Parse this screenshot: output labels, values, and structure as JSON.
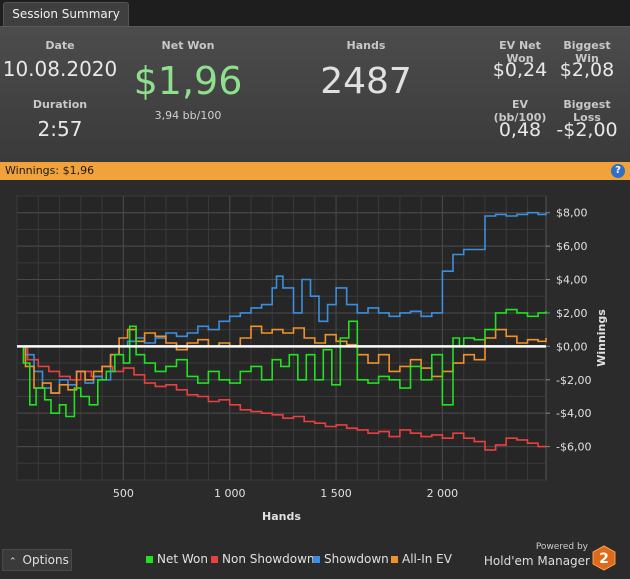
{
  "tab": {
    "label": "Session Summary"
  },
  "summary": {
    "date_label": "Date",
    "date": "10.08.2020",
    "duration_label": "Duration",
    "duration": "2:57",
    "net_won_label": "Net Won",
    "net_won": "$1,96",
    "bb_per_100": "3,94 bb/100",
    "hands_label": "Hands",
    "hands": "2487",
    "ev_net_won_label": "EV Net Won",
    "ev_net_won": "$0,24",
    "biggest_win_label": "Biggest Win",
    "biggest_win": "$2,08",
    "ev_bb_label": "EV (bb/100)",
    "ev_bb": "0,48",
    "biggest_loss_label": "Biggest Loss",
    "biggest_loss": "-$2,00"
  },
  "winnings_bar": {
    "text": "Winnings: $1,96",
    "help_icon": "?"
  },
  "colors": {
    "net_won": "#22e022",
    "non_showdown": "#e84040",
    "showdown": "#3a8fe0",
    "allin_ev": "#f0922a",
    "accent": "#f2a23a",
    "net_won_big": "#8ee08e"
  },
  "chart_data": {
    "type": "line",
    "xlabel": "Hands",
    "ylabel": "Winnings",
    "xlim": [
      0,
      2487
    ],
    "ylim": [
      -8,
      9
    ],
    "x_ticks": [
      500,
      1000,
      1500,
      2000
    ],
    "x_tick_labels": [
      "500",
      "1 000",
      "1 500",
      "2 000"
    ],
    "y_ticks": [
      8,
      6,
      4,
      2,
      0,
      -2,
      -4,
      -6
    ],
    "y_tick_labels": [
      "$8,00",
      "$6,00",
      "$4,00",
      "$2,00",
      "$0,00",
      "-$2,00",
      "-$4,00",
      "-$6,00"
    ],
    "grid": true,
    "legend_position": "bottom",
    "series": [
      {
        "name": "Net Won",
        "color_key": "net_won",
        "x": [
          0,
          30,
          60,
          90,
          130,
          160,
          200,
          230,
          270,
          300,
          340,
          380,
          420,
          460,
          500,
          530,
          560,
          600,
          650,
          700,
          750,
          800,
          850,
          900,
          950,
          1000,
          1050,
          1100,
          1150,
          1200,
          1240,
          1280,
          1320,
          1360,
          1400,
          1440,
          1480,
          1520,
          1560,
          1600,
          1650,
          1700,
          1750,
          1800,
          1850,
          1900,
          1950,
          2000,
          2050,
          2080,
          2100,
          2150,
          2200,
          2250,
          2300,
          2350,
          2400,
          2450,
          2487
        ],
        "y": [
          0,
          -1,
          -3.5,
          -2.5,
          -3.2,
          -4,
          -3.5,
          -4.2,
          -2.5,
          -3,
          -3.5,
          -2,
          -1.5,
          -0.5,
          -1,
          1.2,
          -0.5,
          -1,
          -1.5,
          -1.2,
          -0.8,
          -1.8,
          -2.2,
          -1.5,
          -2,
          -2.2,
          -1.5,
          -1.2,
          -2,
          -0.8,
          -1.2,
          -0.5,
          -2,
          -0.5,
          -2,
          -0.2,
          -2.3,
          0.5,
          1.5,
          -2,
          -2.2,
          -1.8,
          -2,
          -2.5,
          -1.2,
          -2,
          -0.5,
          -3.5,
          0.5,
          0,
          0.5,
          0.4,
          1,
          2,
          2.2,
          2,
          1.8,
          2,
          2.1
        ]
      },
      {
        "name": "Non Showdown",
        "color_key": "non_showdown",
        "x": [
          0,
          50,
          100,
          150,
          200,
          250,
          300,
          350,
          400,
          450,
          500,
          550,
          600,
          650,
          700,
          750,
          800,
          850,
          900,
          950,
          1000,
          1050,
          1100,
          1150,
          1200,
          1250,
          1300,
          1350,
          1400,
          1450,
          1500,
          1550,
          1600,
          1650,
          1700,
          1750,
          1800,
          1850,
          1900,
          1950,
          2000,
          2050,
          2100,
          2150,
          2200,
          2250,
          2300,
          2350,
          2400,
          2450,
          2487
        ],
        "y": [
          0,
          -0.8,
          -1.2,
          -1.5,
          -1.8,
          -2,
          -1.5,
          -1.8,
          -1.2,
          -1.5,
          -1.3,
          -1.7,
          -2.2,
          -2.4,
          -2.3,
          -2.6,
          -2.9,
          -3,
          -3.3,
          -3.2,
          -3.5,
          -3.8,
          -3.9,
          -4,
          -4.1,
          -4.3,
          -4.2,
          -4.5,
          -4.6,
          -4.8,
          -4.7,
          -4.9,
          -5,
          -5.2,
          -5.1,
          -5.4,
          -5,
          -5.2,
          -5.4,
          -5.3,
          -5.5,
          -5.2,
          -5.5,
          -5.7,
          -6.2,
          -5.9,
          -5.5,
          -5.6,
          -5.8,
          -6,
          -6
        ]
      },
      {
        "name": "Showdown",
        "color_key": "showdown",
        "x": [
          0,
          40,
          80,
          120,
          160,
          200,
          240,
          280,
          320,
          360,
          400,
          440,
          480,
          520,
          560,
          600,
          650,
          700,
          750,
          800,
          850,
          900,
          950,
          1000,
          1050,
          1100,
          1150,
          1200,
          1220,
          1250,
          1300,
          1340,
          1380,
          1420,
          1460,
          1500,
          1550,
          1600,
          1650,
          1700,
          1750,
          1800,
          1850,
          1900,
          1950,
          2000,
          2050,
          2100,
          2150,
          2200,
          2250,
          2300,
          2350,
          2400,
          2450,
          2487
        ],
        "y": [
          0,
          -0.5,
          -1.5,
          -2.5,
          -2.8,
          -2,
          -2.3,
          -1.5,
          -2.2,
          -1.8,
          -2,
          -0.5,
          0,
          0.3,
          0.5,
          0.2,
          0.5,
          0.8,
          0.6,
          0.8,
          1.2,
          1,
          1.5,
          1.8,
          2,
          2.3,
          2.5,
          3.5,
          4.2,
          3.5,
          2,
          4,
          3,
          1.5,
          2.5,
          3.5,
          2.5,
          2,
          2.3,
          2,
          1.8,
          2,
          2.1,
          1.8,
          2,
          4.5,
          5.5,
          5.8,
          5.8,
          7.8,
          7.9,
          7.8,
          7.9,
          8,
          7.9,
          8
        ]
      },
      {
        "name": "All-In EV",
        "color_key": "allin_ev",
        "x": [
          0,
          40,
          80,
          120,
          160,
          200,
          240,
          280,
          320,
          360,
          400,
          440,
          480,
          520,
          560,
          600,
          650,
          700,
          750,
          800,
          850,
          900,
          950,
          1000,
          1050,
          1100,
          1150,
          1200,
          1250,
          1300,
          1350,
          1400,
          1450,
          1500,
          1550,
          1600,
          1650,
          1700,
          1750,
          1800,
          1850,
          1900,
          1950,
          2000,
          2050,
          2100,
          2150,
          2200,
          2250,
          2300,
          2350,
          2400,
          2450,
          2487
        ],
        "y": [
          0,
          -1.2,
          -2.5,
          -2.2,
          -2.8,
          -2.3,
          -2.6,
          -1.5,
          -2,
          -1.5,
          -1.2,
          -0.5,
          0.5,
          1,
          0.3,
          0.8,
          0.6,
          0.2,
          -0.2,
          0.2,
          0.4,
          0,
          0.2,
          0,
          0.5,
          1.2,
          0.8,
          1,
          0.8,
          1.1,
          0.5,
          0.2,
          0.7,
          0.3,
          0.1,
          -0.5,
          -1,
          -0.5,
          -1.5,
          -1.2,
          -0.8,
          -1.3,
          -1.8,
          -1.5,
          -1,
          -0.5,
          -0.8,
          0.5,
          1,
          0.6,
          0.2,
          0.4,
          0.3,
          0.5
        ]
      }
    ]
  },
  "legend": [
    {
      "label": "Net Won",
      "color_key": "net_won"
    },
    {
      "label": "Non Showdown",
      "color_key": "non_showdown"
    },
    {
      "label": "Showdown",
      "color_key": "showdown"
    },
    {
      "label": "All-In EV",
      "color_key": "allin_ev"
    }
  ],
  "footer": {
    "options_label": "Options",
    "options_icon": "chevron-up-icon",
    "powered_by": "Powered by",
    "brand": "Hold'em Manager",
    "logo_digit": "2"
  }
}
